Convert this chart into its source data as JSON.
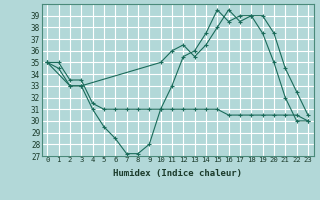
{
  "background_color": "#b2d8d8",
  "grid_color": "#ffffff",
  "line_color": "#1a6b5a",
  "xlabel": "Humidex (Indice chaleur)",
  "ylim": [
    27,
    40
  ],
  "xlim": [
    -0.5,
    23.5
  ],
  "yticks": [
    27,
    28,
    29,
    30,
    31,
    32,
    33,
    34,
    35,
    36,
    37,
    38,
    39
  ],
  "xticks": [
    0,
    1,
    2,
    3,
    4,
    5,
    6,
    7,
    8,
    9,
    10,
    11,
    12,
    13,
    14,
    15,
    16,
    17,
    18,
    19,
    20,
    21,
    22,
    23
  ],
  "series": [
    {
      "x": [
        0,
        1,
        2,
        3,
        4,
        5,
        6,
        7,
        8,
        9,
        10,
        11,
        12,
        13,
        14,
        15,
        16,
        17,
        18,
        19,
        20,
        21,
        22,
        23
      ],
      "y": [
        35.0,
        34.5,
        33.0,
        33.0,
        31.0,
        29.5,
        28.5,
        27.2,
        27.2,
        28.0,
        31.0,
        33.0,
        35.5,
        36.0,
        37.5,
        39.5,
        38.5,
        39.0,
        39.0,
        37.5,
        35.0,
        32.0,
        30.0,
        30.0
      ]
    },
    {
      "x": [
        0,
        1,
        2,
        3,
        4,
        5,
        6,
        7,
        8,
        9,
        10,
        11,
        12,
        13,
        14,
        15,
        16,
        17,
        18,
        19,
        20,
        21,
        22,
        23
      ],
      "y": [
        35.0,
        35.0,
        33.5,
        33.5,
        31.5,
        31.0,
        31.0,
        31.0,
        31.0,
        31.0,
        31.0,
        31.0,
        31.0,
        31.0,
        31.0,
        31.0,
        30.5,
        30.5,
        30.5,
        30.5,
        30.5,
        30.5,
        30.5,
        30.0
      ]
    },
    {
      "x": [
        0,
        2,
        3,
        10,
        11,
        12,
        13,
        14,
        15,
        16,
        17,
        18,
        19,
        20,
        21,
        22,
        23
      ],
      "y": [
        35.0,
        33.0,
        33.0,
        35.0,
        36.0,
        36.5,
        35.5,
        36.5,
        38.0,
        39.5,
        38.5,
        39.0,
        39.0,
        37.5,
        34.5,
        32.5,
        30.5
      ]
    }
  ]
}
